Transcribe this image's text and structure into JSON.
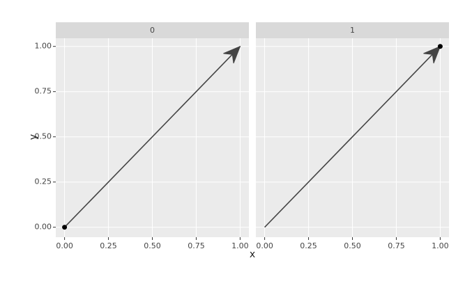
{
  "chart_data": [
    {
      "type": "segment",
      "title": "0",
      "xlabel": "x",
      "ylabel": "y",
      "segment": {
        "x": [
          0,
          1
        ],
        "y": [
          0,
          1
        ]
      },
      "points": {
        "x": [
          0
        ],
        "y": [
          0
        ]
      },
      "line_color": "#444444",
      "point_color": "#000000",
      "xlim": [
        -0.05,
        1.05
      ],
      "ylim": [
        -0.055,
        1.045
      ],
      "xticks": [
        {
          "value": 0,
          "label": "0.00"
        },
        {
          "value": 0.25,
          "label": "0.25"
        },
        {
          "value": 0.5,
          "label": "0.50"
        },
        {
          "value": 0.75,
          "label": "0.75"
        },
        {
          "value": 1,
          "label": "1.00"
        }
      ],
      "yticks": [
        {
          "value": 0,
          "label": "0.00"
        },
        {
          "value": 0.25,
          "label": "0.25"
        },
        {
          "value": 0.5,
          "label": "0.50"
        },
        {
          "value": 0.75,
          "label": "0.75"
        },
        {
          "value": 1,
          "label": "1.00"
        }
      ],
      "grid": true
    },
    {
      "type": "segment",
      "title": "1",
      "segment": {
        "x": [
          0,
          1
        ],
        "y": [
          0,
          1
        ]
      },
      "points": {
        "x": [
          1
        ],
        "y": [
          1
        ]
      },
      "line_color": "#444444",
      "point_color": "#000000",
      "xlim": [
        -0.05,
        1.05
      ],
      "ylim": [
        -0.055,
        1.045
      ],
      "xticks": [
        {
          "value": 0,
          "label": "0.00"
        },
        {
          "value": 0.25,
          "label": "0.25"
        },
        {
          "value": 0.5,
          "label": "0.50"
        },
        {
          "value": 0.75,
          "label": "0.75"
        },
        {
          "value": 1,
          "label": "1.00"
        }
      ],
      "yticks": [
        0,
        0.25,
        0.5,
        0.75,
        1
      ],
      "grid": true
    }
  ]
}
